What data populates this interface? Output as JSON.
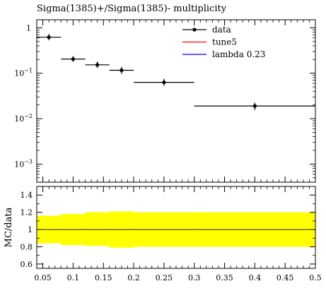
{
  "chart_data": [
    {
      "type": "scatter",
      "title": "Sigma(1385)+/Sigma(1385)- multiplicity",
      "xlabel": "",
      "ylabel": "",
      "yscale": "log",
      "xlim": [
        0.04,
        0.5
      ],
      "ylim": [
        0.0004,
        1.5
      ],
      "x_tick_labels": [
        "0.05",
        "0.1",
        "0.15",
        "0.2",
        "0.25",
        "0.3",
        "0.35",
        "0.4",
        "0.45",
        "0.5"
      ],
      "y_tick_labels": [
        {
          "value": 1,
          "mantissa": "1",
          "exp": ""
        },
        {
          "value": 0.1,
          "mantissa": "10",
          "exp": "−1"
        },
        {
          "value": 0.01,
          "mantissa": "10",
          "exp": "−2"
        },
        {
          "value": 0.001,
          "mantissa": "10",
          "exp": "−3"
        }
      ],
      "legend": {
        "placement": "top-right",
        "entries": [
          {
            "label": "data",
            "color": "#000000",
            "marker": "point"
          },
          {
            "label": "tune5",
            "color": "#ff0000",
            "marker": "line"
          },
          {
            "label": "lambda 0.23",
            "color": "#0000ff",
            "marker": "line"
          }
        ]
      },
      "series": [
        {
          "name": "data",
          "color": "#000000",
          "points": [
            {
              "x": 0.06,
              "xlow": 0.04,
              "xhigh": 0.08,
              "y": 0.62,
              "ylow": 0.53,
              "yhigh": 0.73
            },
            {
              "x": 0.1,
              "xlow": 0.08,
              "xhigh": 0.12,
              "y": 0.205,
              "ylow": 0.178,
              "yhigh": 0.238
            },
            {
              "x": 0.14,
              "xlow": 0.12,
              "xhigh": 0.16,
              "y": 0.153,
              "ylow": 0.13,
              "yhigh": 0.18
            },
            {
              "x": 0.18,
              "xlow": 0.16,
              "xhigh": 0.2,
              "y": 0.116,
              "ylow": 0.097,
              "yhigh": 0.138
            },
            {
              "x": 0.25,
              "xlow": 0.2,
              "xhigh": 0.3,
              "y": 0.063,
              "ylow": 0.053,
              "yhigh": 0.075
            },
            {
              "x": 0.4,
              "xlow": 0.3,
              "xhigh": 0.5,
              "y": 0.019,
              "ylow": 0.0155,
              "yhigh": 0.0225
            }
          ]
        }
      ]
    },
    {
      "type": "area",
      "ylabel": "MC/data",
      "xlim": [
        0.04,
        0.5
      ],
      "ylim": [
        0.55,
        1.5
      ],
      "y_tick_labels": [
        "0.6",
        "0.8",
        "1",
        "1.2",
        "1.4"
      ],
      "reference_line": 1.0,
      "band_color": "#ffff00",
      "band": [
        {
          "xlow": 0.04,
          "xhigh": 0.08,
          "low": 0.84,
          "high": 1.16
        },
        {
          "xlow": 0.08,
          "xhigh": 0.12,
          "low": 0.82,
          "high": 1.18
        },
        {
          "xlow": 0.12,
          "xhigh": 0.16,
          "low": 0.81,
          "high": 1.2
        },
        {
          "xlow": 0.16,
          "xhigh": 0.2,
          "low": 0.79,
          "high": 1.21
        },
        {
          "xlow": 0.2,
          "xhigh": 0.3,
          "low": 0.8,
          "high": 1.2
        },
        {
          "xlow": 0.3,
          "xhigh": 0.5,
          "low": 0.8,
          "high": 1.2
        }
      ]
    }
  ]
}
